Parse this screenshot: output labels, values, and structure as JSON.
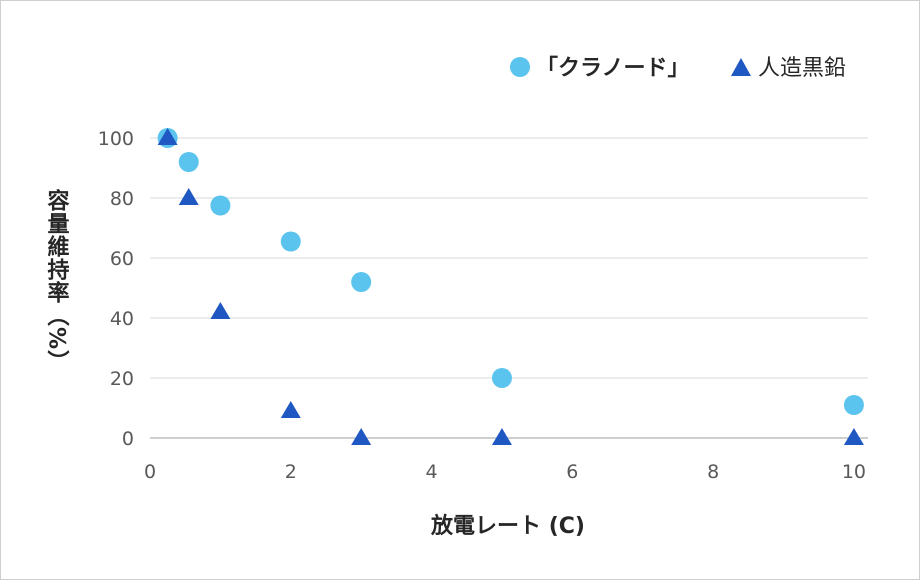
{
  "chart_data": {
    "type": "scatter",
    "title": "",
    "xlabel": "放電レート (C)",
    "ylabel": "容量維持率（%）",
    "xlim": [
      0,
      10.2
    ],
    "ylim": [
      0,
      100
    ],
    "x_ticks": [
      "0",
      "2",
      "4",
      "6",
      "8",
      "10"
    ],
    "y_ticks": [
      "0",
      "20",
      "40",
      "60",
      "80",
      "100"
    ],
    "grid": "horizontal",
    "legend_position": "top-right",
    "series": [
      {
        "name": "「クラノード」",
        "marker": "circle",
        "color": "#5BC4EE",
        "points": [
          {
            "x": 0.25,
            "y": 100
          },
          {
            "x": 0.55,
            "y": 92
          },
          {
            "x": 1.0,
            "y": 77.5
          },
          {
            "x": 2.0,
            "y": 65.5
          },
          {
            "x": 3.0,
            "y": 52
          },
          {
            "x": 5.0,
            "y": 20
          },
          {
            "x": 10.0,
            "y": 11
          }
        ]
      },
      {
        "name": "人造黒鉛",
        "marker": "triangle",
        "color": "#1F57C3",
        "points": [
          {
            "x": 0.25,
            "y": 100
          },
          {
            "x": 0.55,
            "y": 80
          },
          {
            "x": 1.0,
            "y": 42
          },
          {
            "x": 2.0,
            "y": 9
          },
          {
            "x": 3.0,
            "y": 0
          },
          {
            "x": 5.0,
            "y": 0
          },
          {
            "x": 10.0,
            "y": 0
          }
        ]
      }
    ]
  }
}
